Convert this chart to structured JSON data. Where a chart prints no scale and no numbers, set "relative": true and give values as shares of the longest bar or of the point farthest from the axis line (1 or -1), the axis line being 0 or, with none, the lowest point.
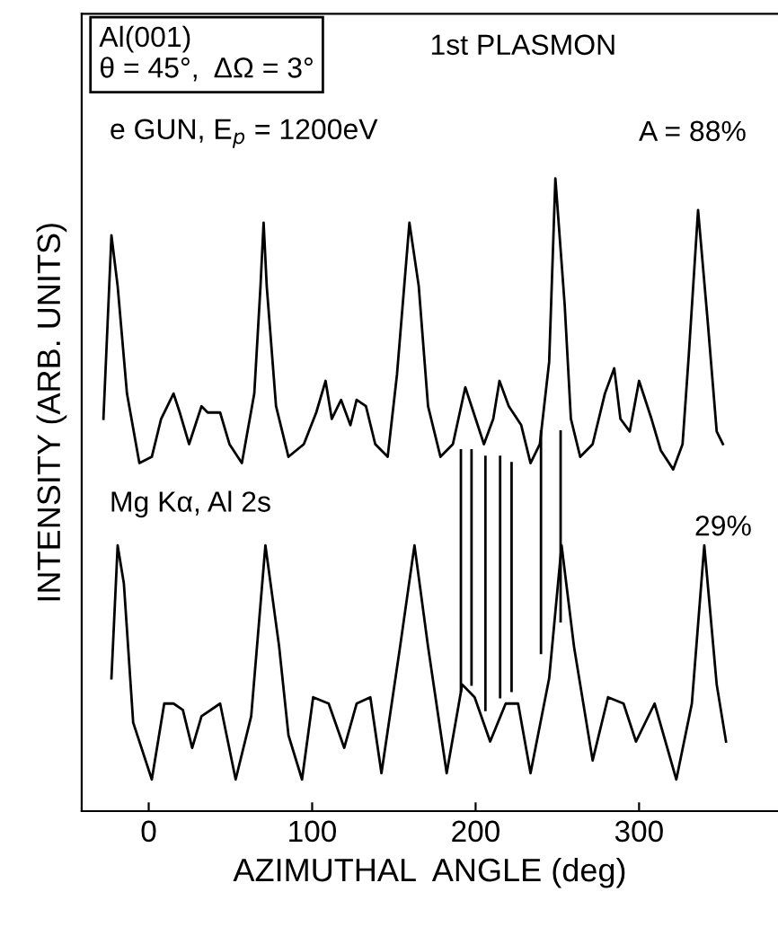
{
  "chart_data": {
    "type": "line",
    "relative": true,
    "xlabel": "AZIMUTHAL  ANGLE (deg)",
    "ylabel": "INTENSITY (ARB. UNITS)",
    "xlim": [
      -41,
      385
    ],
    "xticks": [
      0,
      100,
      200,
      300
    ],
    "annotations": [
      "Al(001)\nθ = 45°,  ΔΩ = 3°",
      "1st PLASMON",
      "A = 88%",
      "29%"
    ],
    "grid": false,
    "legend": false,
    "marker": "none",
    "line_style": "solid",
    "series": [
      {
        "name": "e GUN, E$_{p}$ = 1200eV",
        "color": "#000000",
        "x": [
          -27.7,
          -22.8,
          -19.0,
          -13.3,
          -5.7,
          1.9,
          7.6,
          15.2,
          19.0,
          24.7,
          32.3,
          36.1,
          43.7,
          49.4,
          57.0,
          64.6,
          68.4,
          70.3,
          72.2,
          77.9,
          85.5,
          94.9,
          102.5,
          108.2,
          112.0,
          117.7,
          123.4,
          127.2,
          132.9,
          138.6,
          146.2,
          151.9,
          159.5,
          165.2,
          170.9,
          178.5,
          186.1,
          193.7,
          197.5,
          205.1,
          210.8,
          214.6,
          220.3,
          227.9,
          233.6,
          239.3,
          245.0,
          248.8,
          254.5,
          258.3,
          264.0,
          271.6,
          279.1,
          284.8,
          288.6,
          294.3,
          300.0,
          307.6,
          313.3,
          320.9,
          326.6,
          330.4,
          336.1,
          341.8,
          347.5,
          351.3
        ],
        "values": [
          0.62,
          0.91,
          0.83,
          0.66,
          0.55,
          0.56,
          0.62,
          0.66,
          0.63,
          0.58,
          0.64,
          0.63,
          0.63,
          0.58,
          0.55,
          0.66,
          0.83,
          0.93,
          0.83,
          0.64,
          0.56,
          0.58,
          0.63,
          0.68,
          0.62,
          0.65,
          0.61,
          0.65,
          0.64,
          0.58,
          0.56,
          0.69,
          0.93,
          0.83,
          0.64,
          0.56,
          0.58,
          0.67,
          0.64,
          0.58,
          0.62,
          0.68,
          0.64,
          0.61,
          0.55,
          0.58,
          0.71,
          1.0,
          0.8,
          0.62,
          0.56,
          0.58,
          0.66,
          0.7,
          0.62,
          0.6,
          0.68,
          0.62,
          0.57,
          0.54,
          0.58,
          0.72,
          0.95,
          0.78,
          0.6,
          0.58
        ]
      },
      {
        "name": "Mg Kα, Al 2s",
        "color": "#000000",
        "x": [
          -22.8,
          -19.0,
          -15.2,
          -9.5,
          1.9,
          9.5,
          15.2,
          20.9,
          26.6,
          32.3,
          43.7,
          53.2,
          62.7,
          71.4,
          79.8,
          85.5,
          93.8,
          100.6,
          110.1,
          119.6,
          127.2,
          135.6,
          142.4,
          153.8,
          162.6,
          170.9,
          182.3,
          191.8,
          199.4,
          208.9,
          218.4,
          226.0,
          233.6,
          245.0,
          252.6,
          260.2,
          271.6,
          281.0,
          290.5,
          298.1,
          309.5,
          322.8,
          332.3,
          339.9,
          347.5,
          353.2
        ],
        "values": [
          0.21,
          0.42,
          0.36,
          0.14,
          0.05,
          0.17,
          0.17,
          0.16,
          0.1,
          0.15,
          0.17,
          0.05,
          0.15,
          0.42,
          0.26,
          0.12,
          0.05,
          0.18,
          0.17,
          0.1,
          0.17,
          0.18,
          0.06,
          0.26,
          0.42,
          0.26,
          0.06,
          0.2,
          0.18,
          0.11,
          0.17,
          0.17,
          0.06,
          0.21,
          0.42,
          0.26,
          0.08,
          0.18,
          0.17,
          0.11,
          0.17,
          0.05,
          0.17,
          0.42,
          0.2,
          0.11
        ]
      },
      {
        "color": "#000000",
        "x": [
          191,
          191,
          null,
          197.5,
          197.5,
          null,
          206,
          206,
          null,
          215,
          215,
          null,
          222,
          222,
          null,
          240,
          240,
          null,
          252,
          252
        ],
        "values": [
          0.19,
          0.57,
          null,
          0.2,
          0.57,
          null,
          0.16,
          0.56,
          null,
          0.18,
          0.56,
          null,
          0.19,
          0.55,
          null,
          0.25,
          0.6,
          null,
          0.3,
          0.6
        ]
      }
    ]
  }
}
